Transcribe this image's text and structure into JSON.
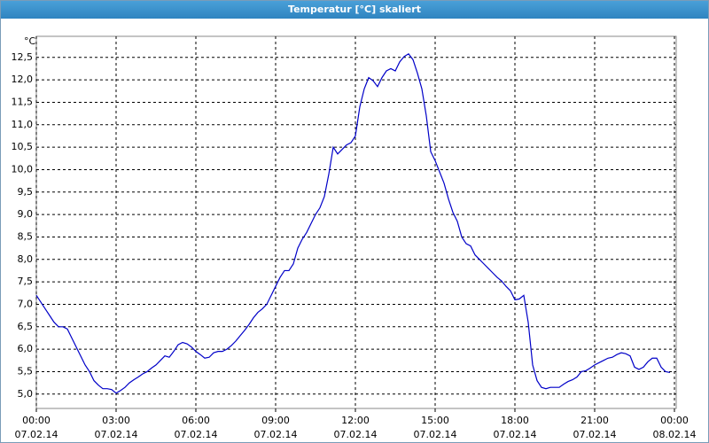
{
  "chart_data": {
    "type": "line",
    "title": "Temperatur [°C] skaliert",
    "y_unit": "°C",
    "color": "#0000c8",
    "grid": true,
    "x": [
      "07.02.14 00:00",
      "07.02.14 00:10",
      "07.02.14 00:20",
      "07.02.14 00:30",
      "07.02.14 00:40",
      "07.02.14 00:50",
      "07.02.14 01:00",
      "07.02.14 01:10",
      "07.02.14 01:20",
      "07.02.14 01:30",
      "07.02.14 01:40",
      "07.02.14 01:50",
      "07.02.14 02:00",
      "07.02.14 02:10",
      "07.02.14 02:20",
      "07.02.14 02:30",
      "07.02.14 02:40",
      "07.02.14 02:50",
      "07.02.14 03:00",
      "07.02.14 03:10",
      "07.02.14 03:20",
      "07.02.14 03:30",
      "07.02.14 03:40",
      "07.02.14 03:50",
      "07.02.14 04:00",
      "07.02.14 04:10",
      "07.02.14 04:20",
      "07.02.14 04:30",
      "07.02.14 04:40",
      "07.02.14 04:50",
      "07.02.14 05:00",
      "07.02.14 05:10",
      "07.02.14 05:20",
      "07.02.14 05:30",
      "07.02.14 05:40",
      "07.02.14 05:50",
      "07.02.14 06:00",
      "07.02.14 06:10",
      "07.02.14 06:20",
      "07.02.14 06:30",
      "07.02.14 06:40",
      "07.02.14 06:50",
      "07.02.14 07:00",
      "07.02.14 07:10",
      "07.02.14 07:20",
      "07.02.14 07:30",
      "07.02.14 07:40",
      "07.02.14 07:50",
      "07.02.14 08:00",
      "07.02.14 08:10",
      "07.02.14 08:20",
      "07.02.14 08:30",
      "07.02.14 08:40",
      "07.02.14 08:50",
      "07.02.14 09:00",
      "07.02.14 09:10",
      "07.02.14 09:20",
      "07.02.14 09:30",
      "07.02.14 09:40",
      "07.02.14 09:50",
      "07.02.14 10:00",
      "07.02.14 10:10",
      "07.02.14 10:20",
      "07.02.14 10:30",
      "07.02.14 10:40",
      "07.02.14 10:50",
      "07.02.14 11:00",
      "07.02.14 11:10",
      "07.02.14 11:20",
      "07.02.14 11:30",
      "07.02.14 11:40",
      "07.02.14 11:50",
      "07.02.14 12:00",
      "07.02.14 12:10",
      "07.02.14 12:20",
      "07.02.14 12:30",
      "07.02.14 12:40",
      "07.02.14 12:50",
      "07.02.14 13:00",
      "07.02.14 13:10",
      "07.02.14 13:20",
      "07.02.14 13:30",
      "07.02.14 13:40",
      "07.02.14 13:50",
      "07.02.14 14:00",
      "07.02.14 14:10",
      "07.02.14 14:20",
      "07.02.14 14:30",
      "07.02.14 14:40",
      "07.02.14 14:50",
      "07.02.14 15:00",
      "07.02.14 15:10",
      "07.02.14 15:20",
      "07.02.14 15:30",
      "07.02.14 15:40",
      "07.02.14 15:50",
      "07.02.14 16:00",
      "07.02.14 16:10",
      "07.02.14 16:20",
      "07.02.14 16:30",
      "07.02.14 16:40",
      "07.02.14 16:50",
      "07.02.14 17:00",
      "07.02.14 17:10",
      "07.02.14 17:20",
      "07.02.14 17:30",
      "07.02.14 17:40",
      "07.02.14 17:50",
      "07.02.14 18:00",
      "07.02.14 18:10",
      "07.02.14 18:20",
      "07.02.14 18:30",
      "07.02.14 18:40",
      "07.02.14 18:50",
      "07.02.14 19:00",
      "07.02.14 19:10",
      "07.02.14 19:20",
      "07.02.14 19:30",
      "07.02.14 19:40",
      "07.02.14 19:50",
      "07.02.14 20:00",
      "07.02.14 20:10",
      "07.02.14 20:20",
      "07.02.14 20:30",
      "07.02.14 20:40",
      "07.02.14 20:50",
      "07.02.14 21:00",
      "07.02.14 21:10",
      "07.02.14 21:20",
      "07.02.14 21:30",
      "07.02.14 21:40",
      "07.02.14 21:50",
      "07.02.14 22:00",
      "07.02.14 22:10",
      "07.02.14 22:20",
      "07.02.14 22:30",
      "07.02.14 22:40",
      "07.02.14 22:50",
      "07.02.14 23:00",
      "07.02.14 23:10",
      "07.02.14 23:20",
      "07.02.14 23:30",
      "07.02.14 23:40",
      "07.02.14 23:50"
    ],
    "values": [
      7.2,
      7.05,
      6.9,
      6.75,
      6.6,
      6.5,
      6.5,
      6.45,
      6.25,
      6.05,
      5.85,
      5.65,
      5.5,
      5.3,
      5.2,
      5.12,
      5.12,
      5.1,
      5.02,
      5.08,
      5.15,
      5.25,
      5.32,
      5.38,
      5.45,
      5.5,
      5.58,
      5.65,
      5.75,
      5.85,
      5.82,
      5.95,
      6.1,
      6.15,
      6.12,
      6.05,
      5.95,
      5.88,
      5.8,
      5.82,
      5.92,
      5.95,
      5.95,
      6.0,
      6.08,
      6.18,
      6.3,
      6.42,
      6.55,
      6.7,
      6.82,
      6.9,
      7.0,
      7.2,
      7.4,
      7.6,
      7.75,
      7.75,
      7.9,
      8.25,
      8.45,
      8.6,
      8.8,
      9.0,
      9.15,
      9.4,
      9.9,
      10.5,
      10.35,
      10.45,
      10.55,
      10.6,
      10.75,
      11.4,
      11.8,
      12.05,
      11.98,
      11.85,
      12.05,
      12.2,
      12.25,
      12.2,
      12.4,
      12.52,
      12.58,
      12.45,
      12.15,
      11.8,
      11.2,
      10.4,
      10.2,
      9.95,
      9.7,
      9.35,
      9.05,
      8.85,
      8.5,
      8.35,
      8.3,
      8.1,
      8.0,
      7.9,
      7.8,
      7.7,
      7.6,
      7.52,
      7.4,
      7.3,
      7.1,
      7.12,
      7.2,
      6.6,
      5.65,
      5.3,
      5.15,
      5.12,
      5.15,
      5.15,
      5.15,
      5.22,
      5.28,
      5.32,
      5.38,
      5.5,
      5.52,
      5.58,
      5.65,
      5.7,
      5.75,
      5.8,
      5.82,
      5.88,
      5.92,
      5.9,
      5.85,
      5.6,
      5.55,
      5.6,
      5.72,
      5.8,
      5.8,
      5.6,
      5.5,
      5.48
    ],
    "xlim": [
      "07.02.14 00:00",
      "08.02.14 00:04"
    ],
    "xticks": [
      {
        "value": "07.02.14 00:00",
        "label": "00:00\n07.02.14"
      },
      {
        "value": "07.02.14 03:00",
        "label": "03:00\n07.02.14"
      },
      {
        "value": "07.02.14 06:00",
        "label": "06:00\n07.02.14"
      },
      {
        "value": "07.02.14 09:00",
        "label": "09:00\n07.02.14"
      },
      {
        "value": "07.02.14 12:00",
        "label": "12:00\n07.02.14"
      },
      {
        "value": "07.02.14 15:00",
        "label": "15:00\n07.02.14"
      },
      {
        "value": "07.02.14 18:00",
        "label": "18:00\n07.02.14"
      },
      {
        "value": "07.02.14 21:00",
        "label": "21:00\n07.02.14"
      },
      {
        "value": "08.02.14 00:00",
        "label": "00:00\n08.02.14"
      }
    ],
    "ylim": [
      4.68,
      12.97
    ],
    "yticks": [
      {
        "value": 5,
        "label": "5,0"
      },
      {
        "value": 5.5,
        "label": "5,5"
      },
      {
        "value": 6,
        "label": "6,0"
      },
      {
        "value": 6.5,
        "label": "6,5"
      },
      {
        "value": 7,
        "label": "7,0"
      },
      {
        "value": 7.5,
        "label": "7,5"
      },
      {
        "value": 8,
        "label": "8,0"
      },
      {
        "value": 8.5,
        "label": "8,5"
      },
      {
        "value": 9,
        "label": "9,0"
      },
      {
        "value": 9.5,
        "label": "9,5"
      },
      {
        "value": 10,
        "label": "10,0"
      },
      {
        "value": 10.5,
        "label": "10,5"
      },
      {
        "value": 11,
        "label": "11,0"
      },
      {
        "value": 11.5,
        "label": "11,5"
      },
      {
        "value": 12,
        "label": "12,0"
      },
      {
        "value": 12.5,
        "label": "12,5"
      }
    ]
  }
}
